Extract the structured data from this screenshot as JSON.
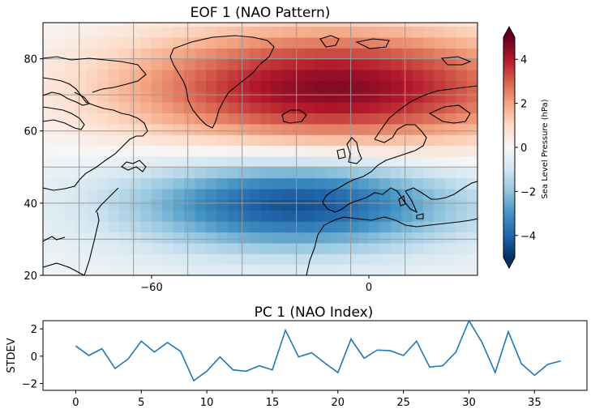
{
  "chart_data": [
    {
      "type": "heatmap",
      "title": "EOF 1 (NAO Pattern)",
      "xticks": [
        "−60",
        "0"
      ],
      "yticks": [
        "20",
        "40",
        "60",
        "80"
      ],
      "xlim": [
        -90,
        30
      ],
      "ylim": [
        20,
        90
      ],
      "grid": true,
      "colorbar": {
        "label": "Sea Level Pressure (hPa)",
        "ticks": [
          "−4",
          "−2",
          "0",
          "2",
          "4"
        ],
        "range": [
          -5,
          5
        ],
        "extend": "both",
        "cmap": "RdBu_r"
      },
      "pattern": {
        "north_center": {
          "lon": -10,
          "lat": 72,
          "value": 4.8
        },
        "south_center": {
          "lon": -20,
          "lat": 40,
          "value": -4.3
        },
        "description_values": "positive SLP over Greenland/Iceland/Arctic, negative over mid-latitude Atlantic"
      }
    },
    {
      "type": "line",
      "title": "PC 1 (NAO Index)",
      "ylabel": "STDEV",
      "xlim": [
        -2.5,
        39
      ],
      "ylim": [
        -2.5,
        2.6
      ],
      "xticks": [
        "0",
        "5",
        "10",
        "15",
        "20",
        "25",
        "30",
        "35"
      ],
      "yticks": [
        "−2",
        "0",
        "2"
      ],
      "color": "#1f77b4",
      "x": [
        0,
        1,
        2,
        3,
        4,
        5,
        6,
        7,
        8,
        9,
        10,
        11,
        12,
        13,
        14,
        15,
        16,
        17,
        18,
        19,
        20,
        21,
        22,
        23,
        24,
        25,
        26,
        27,
        28,
        29,
        30,
        31,
        32,
        33,
        34,
        35,
        36,
        37
      ],
      "values": [
        0.75,
        0.05,
        0.55,
        -0.9,
        -0.2,
        1.1,
        0.3,
        1.0,
        0.35,
        -1.8,
        -1.1,
        -0.05,
        -1.0,
        -1.1,
        -0.7,
        -1.0,
        1.9,
        -0.05,
        0.25,
        -0.5,
        -1.2,
        1.25,
        -0.15,
        0.45,
        0.4,
        0.05,
        1.1,
        -0.8,
        -0.7,
        0.3,
        2.6,
        1.0,
        -1.2,
        1.8,
        -0.55,
        -1.4,
        -0.6,
        -0.35
      ]
    }
  ]
}
